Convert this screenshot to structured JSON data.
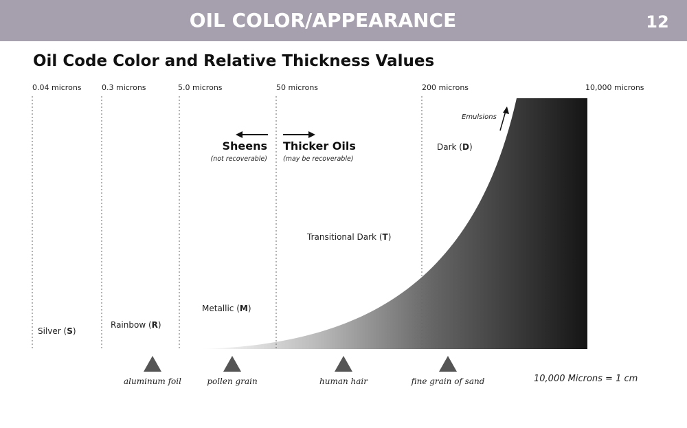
{
  "header": {
    "title": "OIL COLOR/APPEARANCE",
    "page": "12"
  },
  "title": "Oil Code Color and Relative Thickness Values",
  "thresholds": [
    "0.04 microns",
    "0.3 microns",
    "5.0 microns",
    "50 microns",
    "200 microns",
    "10,000 microns"
  ],
  "codes": [
    {
      "text": "Silver (",
      "code": "S",
      "close": ")"
    },
    {
      "text": "Rainbow (",
      "code": "R",
      "close": ")"
    },
    {
      "text": "Metallic (",
      "code": "M",
      "close": ")"
    },
    {
      "text": "Transitional Dark (",
      "code": "T",
      "close": ")"
    },
    {
      "text": "Dark (",
      "code": "D",
      "close": ")"
    }
  ],
  "sheens": {
    "label": "Sheens",
    "note": "(not recoverable)"
  },
  "thicker": {
    "label": "Thicker Oils",
    "note": "(may be recoverable)"
  },
  "emulsions": "Emulsions",
  "references": [
    "aluminum foil",
    "pollen grain",
    "human hair",
    "fine grain of sand"
  ],
  "note": "10,000 Microns = 1 cm"
}
